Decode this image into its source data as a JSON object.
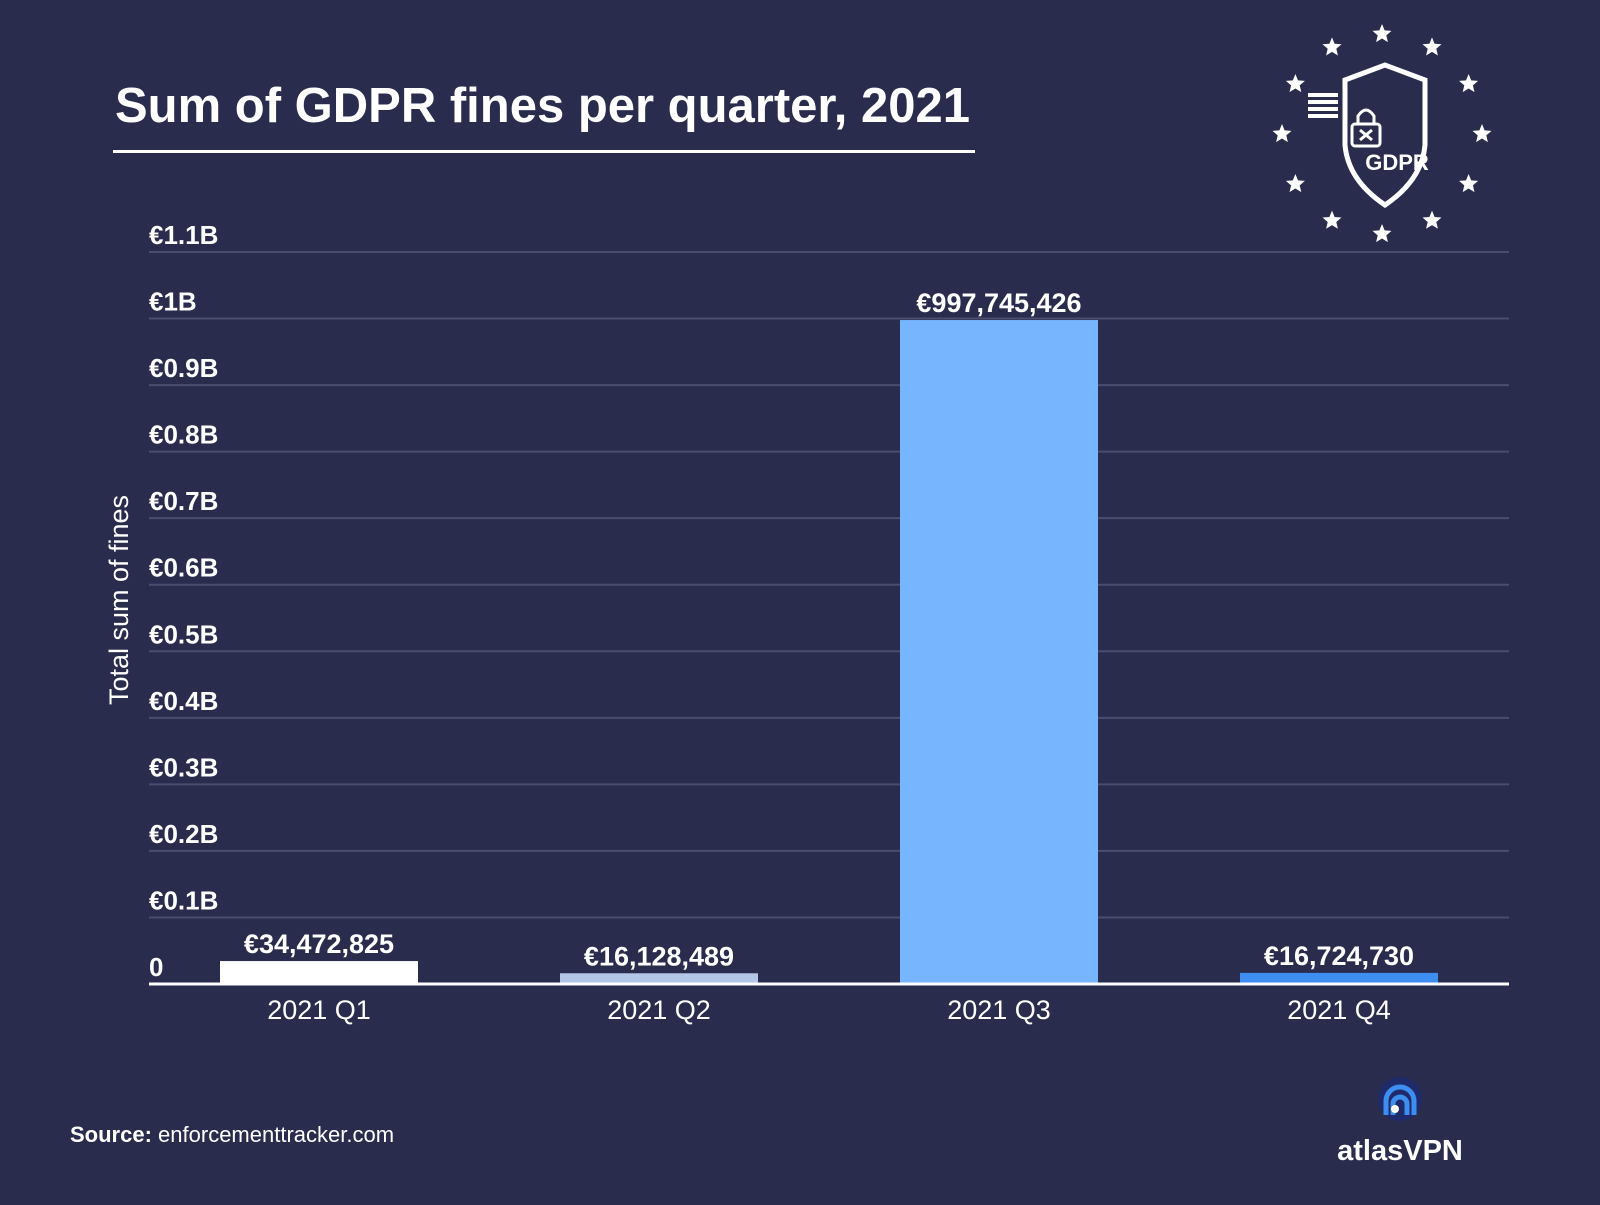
{
  "chart_data": {
    "type": "bar",
    "title": "Sum of GDPR fines per quarter, 2021",
    "xlabel": "",
    "ylabel": "Total sum of fines",
    "categories": [
      "2021 Q1",
      "2021 Q2",
      "2021 Q3",
      "2021 Q4"
    ],
    "values": [
      34472825,
      16128489,
      997745426,
      16724730
    ],
    "value_labels": [
      "€34,472,825",
      "€16,128,489",
      "€997,745,426",
      "€16,724,730"
    ],
    "bar_colors": [
      "#ffffff",
      "#b4c6e7",
      "#78b5ff",
      "#3d8ef0"
    ],
    "ylim": [
      0,
      1100000000
    ],
    "yticks": [
      0,
      100000000,
      200000000,
      300000000,
      400000000,
      500000000,
      600000000,
      700000000,
      800000000,
      900000000,
      1000000000,
      1100000000
    ],
    "ytick_labels": [
      "0",
      "€0.1B",
      "€0.2B",
      "€0.3B",
      "€0.4B",
      "€0.5B",
      "€0.6B",
      "€0.7B",
      "€0.8B",
      "€0.9B",
      "€1B",
      "€1.1B"
    ],
    "grid": true
  },
  "header": {
    "title": "Sum of GDPR fines per quarter, 2021"
  },
  "footer": {
    "source_label": "Source:",
    "source_value": "enforcementtracker.com"
  },
  "logos": {
    "gdpr_text": "GDPR",
    "brand_name": "atlasVPN"
  },
  "colors": {
    "background": "#2a2c4d",
    "gridline": "#4a4d70",
    "text": "#ffffff"
  }
}
